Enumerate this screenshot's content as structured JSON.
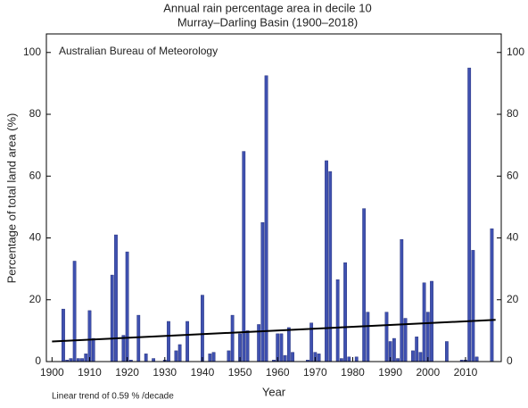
{
  "chart_data": {
    "type": "bar",
    "title": "Annual rain percentage area in decile 10",
    "subtitle": "Murray–Darling Basin (1900–2018)",
    "annotation": "Australian Bureau of Meteorology",
    "footnote": "Linear trend of 0.59 % /decade",
    "xlabel": "Year",
    "ylabel": "Percentage of total land area (%)",
    "color": "#3f51b0",
    "x": [
      1900,
      1901,
      1902,
      1903,
      1904,
      1905,
      1906,
      1907,
      1908,
      1909,
      1910,
      1911,
      1912,
      1913,
      1914,
      1915,
      1916,
      1917,
      1918,
      1919,
      1920,
      1921,
      1922,
      1923,
      1924,
      1925,
      1926,
      1927,
      1928,
      1929,
      1930,
      1931,
      1932,
      1933,
      1934,
      1935,
      1936,
      1937,
      1938,
      1939,
      1940,
      1941,
      1942,
      1943,
      1944,
      1945,
      1946,
      1947,
      1948,
      1949,
      1950,
      1951,
      1952,
      1953,
      1954,
      1955,
      1956,
      1957,
      1958,
      1959,
      1960,
      1961,
      1962,
      1963,
      1964,
      1965,
      1966,
      1967,
      1968,
      1969,
      1970,
      1971,
      1972,
      1973,
      1974,
      1975,
      1976,
      1977,
      1978,
      1979,
      1980,
      1981,
      1982,
      1983,
      1984,
      1985,
      1986,
      1987,
      1988,
      1989,
      1990,
      1991,
      1992,
      1993,
      1994,
      1995,
      1996,
      1997,
      1998,
      1999,
      2000,
      2001,
      2002,
      2003,
      2004,
      2005,
      2006,
      2007,
      2008,
      2009,
      2010,
      2011,
      2012,
      2013,
      2014,
      2015,
      2016,
      2017,
      2018
    ],
    "values": [
      0,
      0,
      0,
      17,
      0.5,
      1,
      32.5,
      1,
      1,
      2.5,
      16.5,
      7.5,
      0,
      0,
      0,
      0,
      28,
      41,
      0,
      8.5,
      35.5,
      0.5,
      0,
      15,
      0,
      2.5,
      0,
      1,
      0,
      0,
      0.5,
      13,
      0,
      3.5,
      5.5,
      0,
      13,
      0,
      0,
      0,
      21.5,
      0,
      2.5,
      3,
      0,
      0,
      0,
      3.5,
      15,
      0,
      9,
      68,
      10,
      0,
      0,
      12,
      45,
      92.5,
      0,
      0.5,
      9,
      9,
      2,
      11,
      3,
      0,
      0,
      0,
      0.5,
      12.5,
      3,
      2.5,
      0,
      65,
      61.5,
      0,
      26.5,
      1,
      32,
      1.5,
      0,
      1.5,
      0,
      49.5,
      16,
      0,
      0,
      0,
      0,
      16,
      6.5,
      7.5,
      1,
      39.5,
      14,
      0,
      3.5,
      8,
      3,
      25.5,
      16,
      26,
      0,
      0,
      0,
      6.5,
      0,
      0,
      0,
      0.5,
      0.5,
      95,
      36,
      1.5,
      0,
      0,
      0,
      43,
      0
    ],
    "trend": {
      "x": [
        1900,
        2018
      ],
      "values": [
        6.5,
        13.5
      ],
      "color": "#000000"
    },
    "xlim": [
      1898.5,
      2019.5
    ],
    "xticks": [
      1900,
      1910,
      1920,
      1930,
      1940,
      1950,
      1960,
      1970,
      1980,
      1990,
      2000,
      2010
    ],
    "ylim": [
      0,
      106
    ],
    "yticks": [
      0,
      20,
      40,
      60,
      80,
      100
    ],
    "y2lim": [
      0,
      106
    ],
    "y2ticks": [
      0,
      20,
      40,
      60,
      80,
      100
    ]
  }
}
